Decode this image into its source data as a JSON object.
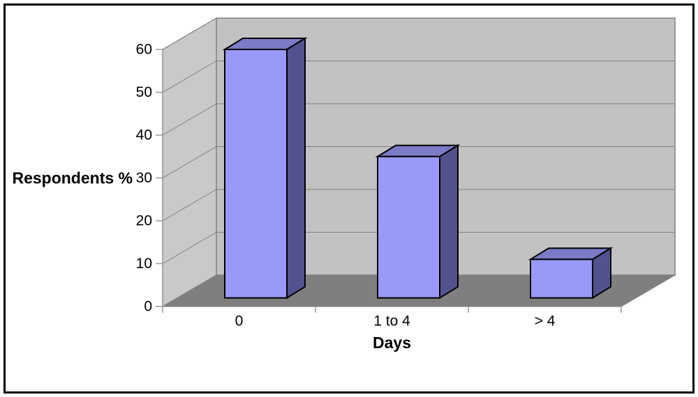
{
  "chart_data": {
    "type": "bar",
    "style": "3d-column",
    "title": "",
    "xlabel": "Days",
    "ylabel": "Respondents %",
    "categories": [
      "0",
      "1 to 4",
      "> 4"
    ],
    "values": [
      58,
      33,
      9
    ],
    "series": [
      {
        "name": "Respondents %",
        "values": [
          58,
          33,
          9
        ]
      }
    ],
    "ylim": [
      0,
      60
    ],
    "ytick_step": 10,
    "yticks": [
      0,
      10,
      20,
      30,
      40,
      50,
      60
    ],
    "grid": true,
    "legend": false,
    "colors": {
      "bar_front": "#9999F8",
      "bar_top": "#7B7BC8",
      "bar_side": "#52528F",
      "bar_outline": "#000000",
      "wall_back": "#C2C2C2",
      "wall_side": "#C9C9C9",
      "floor": "#7F7F7F",
      "gridline": "#808080",
      "axis_line": "#999999",
      "tick_mark": "#999999",
      "text": "#000000",
      "background": "#FFFFFF",
      "frame_border": "#000000"
    }
  }
}
